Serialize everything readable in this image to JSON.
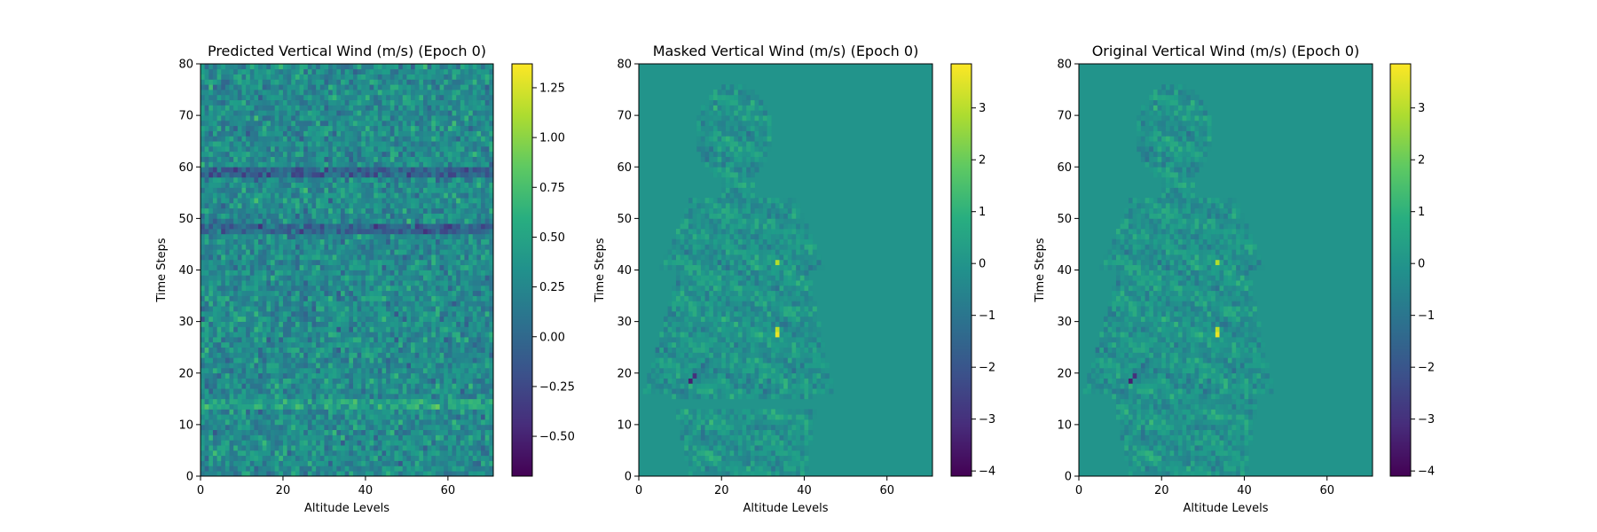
{
  "chart_data": [
    {
      "type": "heatmap",
      "title": "Predicted Vertical Wind (m/s) (Epoch 0)",
      "xlabel": "Altitude Levels",
      "ylabel": "Time Steps",
      "xlim": [
        0,
        71
      ],
      "ylim": [
        0,
        80
      ],
      "xticks": [
        0,
        20,
        40,
        60
      ],
      "yticks": [
        0,
        10,
        20,
        30,
        40,
        50,
        60,
        70,
        80
      ],
      "colormap": "viridis",
      "colorbar": {
        "min": -0.7,
        "max": 1.37,
        "ticks": [
          -0.5,
          -0.25,
          0.0,
          0.25,
          0.5,
          0.75,
          1.0,
          1.25
        ],
        "tick_labels": [
          "−0.50",
          "−0.25",
          "0.00",
          "0.25",
          "0.50",
          "0.75",
          "1.00",
          "1.25"
        ]
      },
      "field": "noise",
      "field_description": "mostly 0.1-0.6 values with noise, dark horizontal bands near time steps 47-48 and 58-59, brighter bands near 13-14"
    },
    {
      "type": "heatmap",
      "title": "Masked Vertical Wind (m/s) (Epoch 0)",
      "xlabel": "Altitude Levels",
      "ylabel": "Time Steps",
      "xlim": [
        0,
        71
      ],
      "ylim": [
        0,
        80
      ],
      "xticks": [
        0,
        20,
        40,
        60
      ],
      "yticks": [
        0,
        10,
        20,
        30,
        40,
        50,
        60,
        70,
        80
      ],
      "colormap": "viridis",
      "colorbar": {
        "min": -4.1,
        "max": 3.85,
        "ticks": [
          -4,
          -3,
          -2,
          -1,
          0,
          1,
          2,
          3
        ],
        "tick_labels": [
          "−4",
          "−3",
          "−2",
          "−1",
          "0",
          "1",
          "2",
          "3"
        ]
      },
      "field": "masked",
      "background": 0
    },
    {
      "type": "heatmap",
      "title": "Original Vertical Wind (m/s) (Epoch 0)",
      "xlabel": "Altitude Levels",
      "ylabel": "Time Steps",
      "xlim": [
        0,
        71
      ],
      "ylim": [
        0,
        80
      ],
      "xticks": [
        0,
        20,
        40,
        60
      ],
      "yticks": [
        0,
        10,
        20,
        30,
        40,
        50,
        60,
        70,
        80
      ],
      "colormap": "viridis",
      "colorbar": {
        "min": -4.1,
        "max": 3.85,
        "ticks": [
          -4,
          -3,
          -2,
          -1,
          0,
          1,
          2,
          3
        ],
        "tick_labels": [
          "−4",
          "−3",
          "−2",
          "−1",
          "0",
          "1",
          "2",
          "3"
        ]
      },
      "field": "original",
      "background": 0
    }
  ]
}
